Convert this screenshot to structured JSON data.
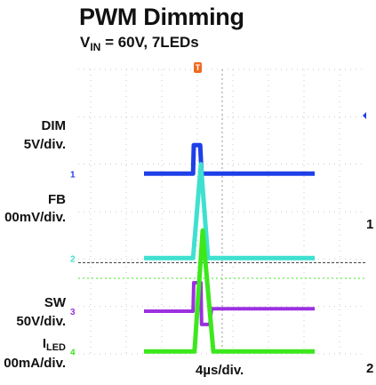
{
  "title": "PWM Dimming",
  "subtitle": {
    "prefix": "V",
    "sub": "IN",
    "suffix": " = 60V, 7LEDs"
  },
  "channels": [
    {
      "name": "DIM",
      "scale": "5V/div.",
      "marker": "1",
      "color": "#1f3fe8"
    },
    {
      "name": "FB",
      "scale": "00mV/div.",
      "marker": "2",
      "color": "#3fe0d0"
    },
    {
      "name": "SW",
      "scale": "50V/div.",
      "marker": "3",
      "color": "#9b30e0"
    },
    {
      "name": "I",
      "name_sub": "LED",
      "scale": "00mA/div.",
      "marker": "4",
      "color": "#3ce81c"
    }
  ],
  "timebase": "4µs/div.",
  "trigger_marker": "T",
  "right_edge_labels": [
    "1",
    "2"
  ],
  "chart_data": {
    "type": "line",
    "title": "PWM Dimming",
    "subtitle": "VIN = 60V, 7LEDs",
    "xlabel": "4µs/div.",
    "grid": true,
    "x_unit": "div",
    "xlim": [
      -1.5,
      3.3
    ],
    "ylim": [
      0,
      6
    ],
    "series": [
      {
        "name": "DIM",
        "scale": "5V/div.",
        "points": [
          [
            -1.5,
            3.8
          ],
          [
            -0.12,
            3.8
          ],
          [
            -0.1,
            4.4
          ],
          [
            0.08,
            4.4
          ],
          [
            0.12,
            3.8
          ],
          [
            3.3,
            3.8
          ]
        ]
      },
      {
        "name": "FB",
        "scale": "00mV/div.",
        "points": [
          [
            -1.5,
            2.02
          ],
          [
            -0.12,
            2.02
          ],
          [
            0.1,
            4.0
          ],
          [
            0.3,
            2.02
          ],
          [
            3.3,
            2.02
          ]
        ]
      },
      {
        "name": "SW",
        "scale": "50V/div.",
        "points": [
          [
            -1.5,
            0.9
          ],
          [
            -0.12,
            0.9
          ],
          [
            -0.1,
            1.5
          ],
          [
            0.1,
            1.5
          ],
          [
            0.12,
            0.62
          ],
          [
            0.35,
            0.62
          ],
          [
            0.4,
            0.95
          ],
          [
            3.3,
            0.95
          ]
        ]
      },
      {
        "name": "ILED",
        "scale": "00mA/div.",
        "points": [
          [
            -1.5,
            0.05
          ],
          [
            -0.08,
            0.05
          ],
          [
            0.15,
            2.6
          ],
          [
            0.45,
            0.05
          ],
          [
            3.3,
            0.05
          ]
        ]
      }
    ]
  }
}
